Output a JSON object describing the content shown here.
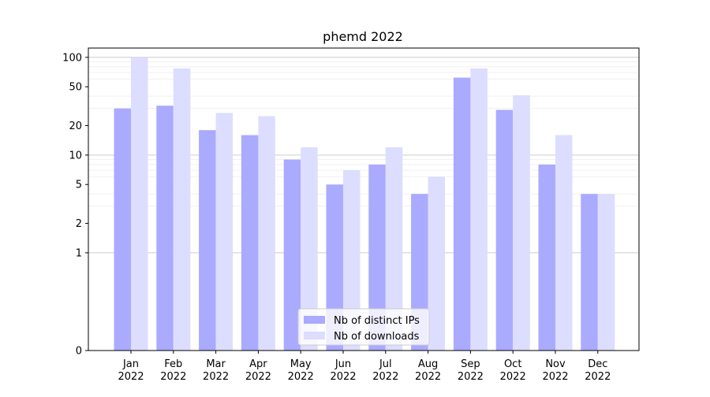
{
  "chart_data": {
    "type": "bar",
    "title": "phemd 2022",
    "xlabel": "",
    "ylabel": "",
    "yscale": "symlog",
    "yticks": [
      0,
      1,
      2,
      5,
      10,
      20,
      50,
      100
    ],
    "ytick_labels": [
      "0",
      "1",
      "2",
      "5",
      "10",
      "20",
      "50",
      "100"
    ],
    "categories": [
      "Jan\n2022",
      "Feb\n2022",
      "Mar\n2022",
      "Apr\n2022",
      "May\n2022",
      "Jun\n2022",
      "Jul\n2022",
      "Aug\n2022",
      "Sep\n2022",
      "Oct\n2022",
      "Nov\n2022",
      "Dec\n2022"
    ],
    "series": [
      {
        "name": "Nb of distinct IPs",
        "color": "#aaaaff",
        "values": [
          30,
          32,
          18,
          16,
          9,
          5,
          8,
          4,
          62,
          29,
          8,
          4
        ]
      },
      {
        "name": "Nb of downloads",
        "color": "#ddddff",
        "values": [
          100,
          77,
          27,
          25,
          12,
          7,
          12,
          6,
          77,
          41,
          16,
          4
        ]
      }
    ],
    "legend_position": "bottom-center",
    "grid": true
  }
}
